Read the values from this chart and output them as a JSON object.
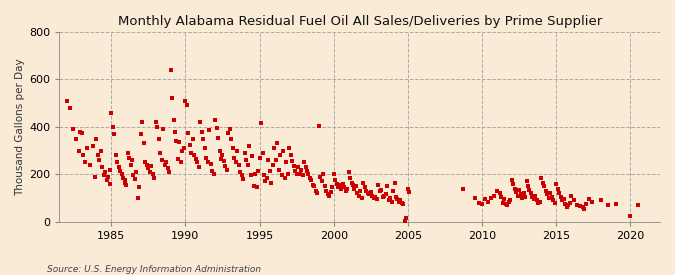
{
  "title": "Monthly Alabama Residual Fuel Oil All Sales/Deliveries by Prime Supplier",
  "ylabel": "Thousand Gallons per Day",
  "source": "Source: U.S. Energy Information Administration",
  "background_color": "#faebd7",
  "dot_color": "#cc0000",
  "ylim": [
    0,
    800
  ],
  "yticks": [
    0,
    200,
    400,
    600,
    800
  ],
  "xticks": [
    1985,
    1990,
    1995,
    2000,
    2005,
    2010,
    2015,
    2020
  ],
  "xlim": [
    1981.5,
    2022
  ],
  "data": [
    [
      1982.0,
      510
    ],
    [
      1982.2,
      480
    ],
    [
      1982.4,
      390
    ],
    [
      1982.6,
      350
    ],
    [
      1982.8,
      300
    ],
    [
      1982.9,
      380
    ],
    [
      1983.0,
      375
    ],
    [
      1983.1,
      280
    ],
    [
      1983.2,
      250
    ],
    [
      1983.4,
      310
    ],
    [
      1983.6,
      240
    ],
    [
      1983.8,
      320
    ],
    [
      1983.9,
      190
    ],
    [
      1984.0,
      350
    ],
    [
      1984.1,
      280
    ],
    [
      1984.2,
      260
    ],
    [
      1984.3,
      300
    ],
    [
      1984.4,
      230
    ],
    [
      1984.5,
      195
    ],
    [
      1984.6,
      210
    ],
    [
      1984.7,
      175
    ],
    [
      1984.8,
      190
    ],
    [
      1984.9,
      220
    ],
    [
      1984.95,
      160
    ],
    [
      1985.0,
      460
    ],
    [
      1985.1,
      400
    ],
    [
      1985.2,
      370
    ],
    [
      1985.3,
      280
    ],
    [
      1985.4,
      250
    ],
    [
      1985.5,
      230
    ],
    [
      1985.6,
      215
    ],
    [
      1985.7,
      200
    ],
    [
      1985.8,
      185
    ],
    [
      1985.9,
      165
    ],
    [
      1985.95,
      175
    ],
    [
      1986.0,
      155
    ],
    [
      1986.1,
      290
    ],
    [
      1986.2,
      270
    ],
    [
      1986.3,
      240
    ],
    [
      1986.4,
      260
    ],
    [
      1986.5,
      195
    ],
    [
      1986.6,
      180
    ],
    [
      1986.7,
      210
    ],
    [
      1986.8,
      100
    ],
    [
      1986.9,
      145
    ],
    [
      1987.0,
      370
    ],
    [
      1987.1,
      420
    ],
    [
      1987.2,
      330
    ],
    [
      1987.3,
      250
    ],
    [
      1987.4,
      240
    ],
    [
      1987.5,
      225
    ],
    [
      1987.6,
      210
    ],
    [
      1987.7,
      235
    ],
    [
      1987.8,
      200
    ],
    [
      1987.9,
      185
    ],
    [
      1988.0,
      420
    ],
    [
      1988.1,
      400
    ],
    [
      1988.2,
      350
    ],
    [
      1988.3,
      290
    ],
    [
      1988.4,
      260
    ],
    [
      1988.5,
      390
    ],
    [
      1988.6,
      240
    ],
    [
      1988.7,
      250
    ],
    [
      1988.8,
      225
    ],
    [
      1988.9,
      210
    ],
    [
      1989.0,
      640
    ],
    [
      1989.1,
      520
    ],
    [
      1989.2,
      430
    ],
    [
      1989.3,
      380
    ],
    [
      1989.4,
      340
    ],
    [
      1989.5,
      265
    ],
    [
      1989.6,
      335
    ],
    [
      1989.7,
      250
    ],
    [
      1989.8,
      300
    ],
    [
      1989.9,
      310
    ],
    [
      1990.0,
      510
    ],
    [
      1990.1,
      490
    ],
    [
      1990.2,
      375
    ],
    [
      1990.3,
      325
    ],
    [
      1990.4,
      290
    ],
    [
      1990.5,
      350
    ],
    [
      1990.6,
      280
    ],
    [
      1990.7,
      265
    ],
    [
      1990.8,
      250
    ],
    [
      1990.9,
      230
    ],
    [
      1991.0,
      420
    ],
    [
      1991.1,
      380
    ],
    [
      1991.2,
      350
    ],
    [
      1991.3,
      310
    ],
    [
      1991.4,
      270
    ],
    [
      1991.5,
      250
    ],
    [
      1991.6,
      385
    ],
    [
      1991.7,
      245
    ],
    [
      1991.8,
      215
    ],
    [
      1991.9,
      200
    ],
    [
      1992.0,
      430
    ],
    [
      1992.1,
      395
    ],
    [
      1992.2,
      355
    ],
    [
      1992.3,
      300
    ],
    [
      1992.4,
      265
    ],
    [
      1992.5,
      280
    ],
    [
      1992.6,
      255
    ],
    [
      1992.7,
      235
    ],
    [
      1992.8,
      220
    ],
    [
      1992.9,
      375
    ],
    [
      1993.0,
      390
    ],
    [
      1993.1,
      350
    ],
    [
      1993.2,
      310
    ],
    [
      1993.3,
      270
    ],
    [
      1993.4,
      250
    ],
    [
      1993.5,
      300
    ],
    [
      1993.6,
      240
    ],
    [
      1993.7,
      210
    ],
    [
      1993.8,
      195
    ],
    [
      1993.9,
      180
    ],
    [
      1994.0,
      290
    ],
    [
      1994.1,
      260
    ],
    [
      1994.2,
      240
    ],
    [
      1994.3,
      320
    ],
    [
      1994.4,
      195
    ],
    [
      1994.5,
      275
    ],
    [
      1994.6,
      150
    ],
    [
      1994.7,
      200
    ],
    [
      1994.8,
      145
    ],
    [
      1994.9,
      215
    ],
    [
      1995.0,
      270
    ],
    [
      1995.1,
      415
    ],
    [
      1995.2,
      290
    ],
    [
      1995.3,
      195
    ],
    [
      1995.4,
      170
    ],
    [
      1995.5,
      185
    ],
    [
      1995.6,
      260
    ],
    [
      1995.7,
      215
    ],
    [
      1995.8,
      165
    ],
    [
      1995.9,
      240
    ],
    [
      1996.0,
      310
    ],
    [
      1996.1,
      260
    ],
    [
      1996.2,
      330
    ],
    [
      1996.3,
      220
    ],
    [
      1996.4,
      280
    ],
    [
      1996.5,
      195
    ],
    [
      1996.6,
      300
    ],
    [
      1996.7,
      185
    ],
    [
      1996.8,
      250
    ],
    [
      1996.9,
      200
    ],
    [
      1997.0,
      310
    ],
    [
      1997.1,
      280
    ],
    [
      1997.2,
      255
    ],
    [
      1997.3,
      235
    ],
    [
      1997.4,
      215
    ],
    [
      1997.5,
      200
    ],
    [
      1997.6,
      230
    ],
    [
      1997.7,
      200
    ],
    [
      1997.8,
      220
    ],
    [
      1997.9,
      195
    ],
    [
      1998.0,
      250
    ],
    [
      1998.1,
      230
    ],
    [
      1998.2,
      215
    ],
    [
      1998.3,
      200
    ],
    [
      1998.4,
      185
    ],
    [
      1998.5,
      175
    ],
    [
      1998.6,
      155
    ],
    [
      1998.7,
      150
    ],
    [
      1998.8,
      130
    ],
    [
      1998.9,
      120
    ],
    [
      1999.0,
      405
    ],
    [
      1999.1,
      190
    ],
    [
      1999.2,
      170
    ],
    [
      1999.3,
      200
    ],
    [
      1999.4,
      150
    ],
    [
      1999.5,
      130
    ],
    [
      1999.6,
      115
    ],
    [
      1999.7,
      110
    ],
    [
      1999.8,
      125
    ],
    [
      1999.9,
      145
    ],
    [
      2000.0,
      200
    ],
    [
      2000.1,
      175
    ],
    [
      2000.2,
      160
    ],
    [
      2000.3,
      145
    ],
    [
      2000.4,
      155
    ],
    [
      2000.5,
      140
    ],
    [
      2000.6,
      160
    ],
    [
      2000.7,
      145
    ],
    [
      2000.8,
      130
    ],
    [
      2000.9,
      140
    ],
    [
      2001.0,
      210
    ],
    [
      2001.1,
      185
    ],
    [
      2001.2,
      165
    ],
    [
      2001.3,
      155
    ],
    [
      2001.4,
      140
    ],
    [
      2001.5,
      150
    ],
    [
      2001.6,
      120
    ],
    [
      2001.7,
      110
    ],
    [
      2001.8,
      130
    ],
    [
      2001.9,
      100
    ],
    [
      2002.0,
      165
    ],
    [
      2002.1,
      145
    ],
    [
      2002.2,
      130
    ],
    [
      2002.3,
      120
    ],
    [
      2002.4,
      115
    ],
    [
      2002.5,
      125
    ],
    [
      2002.6,
      110
    ],
    [
      2002.7,
      100
    ],
    [
      2002.8,
      105
    ],
    [
      2002.9,
      95
    ],
    [
      2003.0,
      155
    ],
    [
      2003.1,
      130
    ],
    [
      2003.2,
      135
    ],
    [
      2003.3,
      105
    ],
    [
      2003.4,
      110
    ],
    [
      2003.5,
      115
    ],
    [
      2003.6,
      150
    ],
    [
      2003.7,
      90
    ],
    [
      2003.8,
      100
    ],
    [
      2003.9,
      85
    ],
    [
      2004.0,
      130
    ],
    [
      2004.1,
      165
    ],
    [
      2004.2,
      105
    ],
    [
      2004.3,
      95
    ],
    [
      2004.4,
      85
    ],
    [
      2004.5,
      90
    ],
    [
      2004.6,
      80
    ],
    [
      2004.7,
      75
    ],
    [
      2004.8,
      5
    ],
    [
      2004.9,
      15
    ],
    [
      2005.0,
      140
    ],
    [
      2005.1,
      125
    ],
    [
      2008.7,
      140
    ],
    [
      2009.5,
      100
    ],
    [
      2009.8,
      80
    ],
    [
      2010.0,
      75
    ],
    [
      2010.2,
      95
    ],
    [
      2010.4,
      85
    ],
    [
      2010.6,
      100
    ],
    [
      2010.8,
      110
    ],
    [
      2011.0,
      130
    ],
    [
      2011.2,
      120
    ],
    [
      2011.3,
      105
    ],
    [
      2011.4,
      80
    ],
    [
      2011.5,
      95
    ],
    [
      2011.6,
      75
    ],
    [
      2011.7,
      70
    ],
    [
      2011.8,
      85
    ],
    [
      2011.9,
      90
    ],
    [
      2012.0,
      175
    ],
    [
      2012.1,
      160
    ],
    [
      2012.2,
      140
    ],
    [
      2012.3,
      125
    ],
    [
      2012.4,
      110
    ],
    [
      2012.5,
      135
    ],
    [
      2012.6,
      115
    ],
    [
      2012.7,
      100
    ],
    [
      2012.8,
      120
    ],
    [
      2012.9,
      105
    ],
    [
      2013.0,
      170
    ],
    [
      2013.1,
      150
    ],
    [
      2013.2,
      135
    ],
    [
      2013.3,
      120
    ],
    [
      2013.4,
      105
    ],
    [
      2013.5,
      95
    ],
    [
      2013.6,
      110
    ],
    [
      2013.7,
      90
    ],
    [
      2013.8,
      80
    ],
    [
      2013.9,
      85
    ],
    [
      2014.0,
      185
    ],
    [
      2014.1,
      165
    ],
    [
      2014.2,
      150
    ],
    [
      2014.3,
      130
    ],
    [
      2014.4,
      115
    ],
    [
      2014.5,
      100
    ],
    [
      2014.6,
      120
    ],
    [
      2014.7,
      105
    ],
    [
      2014.8,
      90
    ],
    [
      2014.9,
      80
    ],
    [
      2015.0,
      160
    ],
    [
      2015.1,
      140
    ],
    [
      2015.2,
      120
    ],
    [
      2015.3,
      105
    ],
    [
      2015.4,
      90
    ],
    [
      2015.5,
      95
    ],
    [
      2015.6,
      75
    ],
    [
      2015.7,
      60
    ],
    [
      2015.8,
      70
    ],
    [
      2015.9,
      80
    ],
    [
      2016.0,
      110
    ],
    [
      2016.2,
      90
    ],
    [
      2016.4,
      70
    ],
    [
      2016.6,
      65
    ],
    [
      2016.8,
      60
    ],
    [
      2016.9,
      55
    ],
    [
      2017.0,
      75
    ],
    [
      2017.2,
      95
    ],
    [
      2017.4,
      85
    ],
    [
      2018.0,
      90
    ],
    [
      2018.5,
      70
    ],
    [
      2019.0,
      75
    ],
    [
      2020.0,
      25
    ],
    [
      2020.5,
      70
    ]
  ]
}
